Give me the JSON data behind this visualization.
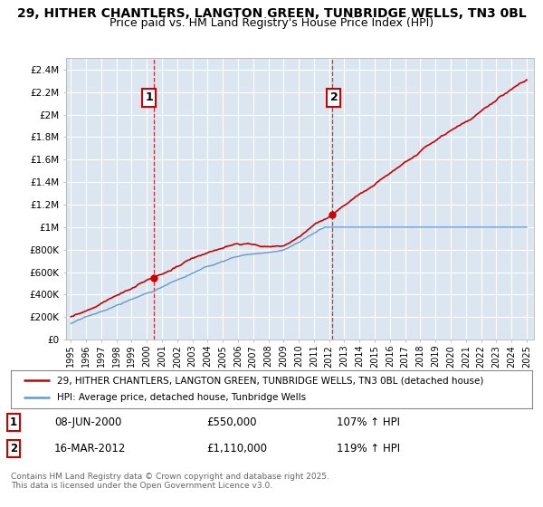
{
  "title_line1": "29, HITHER CHANTLERS, LANGTON GREEN, TUNBRIDGE WELLS, TN3 0BL",
  "title_line2": "Price paid vs. HM Land Registry's House Price Index (HPI)",
  "title_fontsize": 10,
  "subtitle_fontsize": 9,
  "background_color": "#ffffff",
  "plot_bg_color": "#dce6f1",
  "grid_color": "#ffffff",
  "red_color": "#cc0000",
  "blue_color": "#6699cc",
  "sale1_date_num": 2000.44,
  "sale1_price": 550000,
  "sale1_label": "1",
  "sale2_date_num": 2012.21,
  "sale2_price": 1110000,
  "sale2_label": "2",
  "ylim_max": 2500000,
  "xlim_start": 1994.7,
  "xlim_end": 2025.5,
  "yticks": [
    0,
    200000,
    400000,
    600000,
    800000,
    1000000,
    1200000,
    1400000,
    1600000,
    1800000,
    2000000,
    2200000,
    2400000
  ],
  "ytick_labels": [
    "£0",
    "£200K",
    "£400K",
    "£600K",
    "£800K",
    "£1M",
    "£1.2M",
    "£1.4M",
    "£1.6M",
    "£1.8M",
    "£2M",
    "£2.2M",
    "£2.4M"
  ],
  "xticks": [
    1995,
    1996,
    1997,
    1998,
    1999,
    2000,
    2001,
    2002,
    2003,
    2004,
    2005,
    2006,
    2007,
    2008,
    2009,
    2010,
    2011,
    2012,
    2013,
    2014,
    2015,
    2016,
    2017,
    2018,
    2019,
    2020,
    2021,
    2022,
    2023,
    2024,
    2025
  ],
  "legend_red_label": "29, HITHER CHANTLERS, LANGTON GREEN, TUNBRIDGE WELLS, TN3 0BL (detached house)",
  "legend_blue_label": "HPI: Average price, detached house, Tunbridge Wells",
  "annotation1_num": "1",
  "annotation1_date": "08-JUN-2000",
  "annotation1_price": "£550,000",
  "annotation1_hpi": "107% ↑ HPI",
  "annotation2_num": "2",
  "annotation2_date": "16-MAR-2012",
  "annotation2_price": "£1,110,000",
  "annotation2_hpi": "119% ↑ HPI",
  "footer": "Contains HM Land Registry data © Crown copyright and database right 2025.\nThis data is licensed under the Open Government Licence v3.0."
}
